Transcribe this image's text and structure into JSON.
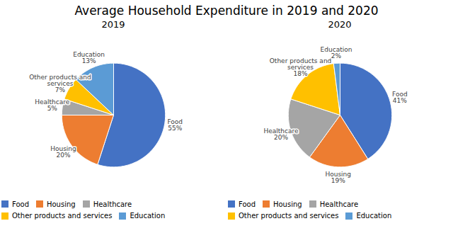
{
  "title": "Average Household Expenditure in 2019 and 2020",
  "chart_data": [
    {
      "type": "pie",
      "title": "2019",
      "categories": [
        "Food",
        "Housing",
        "Healthcare",
        "Other products and services",
        "Education"
      ],
      "values": [
        55,
        20,
        5,
        7,
        13
      ],
      "value_labels": [
        "Food\n55%",
        "Housing\n20%",
        "Healthcare\n5%",
        "Other products and\nservices\n7%",
        "Education\n13%"
      ],
      "colors": [
        "#4472C4",
        "#ED7D31",
        "#A5A5A5",
        "#FFC000",
        "#5B9BD5"
      ],
      "data_labels": true,
      "legend": "bottom"
    },
    {
      "type": "pie",
      "title": "2020",
      "categories": [
        "Food",
        "Housing",
        "Healthcare",
        "Other products and services",
        "Education"
      ],
      "values": [
        41,
        19,
        20,
        18,
        2
      ],
      "value_labels": [
        "Food\n41%",
        "Housing\n19%",
        "Healthcare\n20%",
        "Other products and\nservices\n18%",
        "Education\n2%"
      ],
      "colors": [
        "#4472C4",
        "#ED7D31",
        "#A5A5A5",
        "#FFC000",
        "#5B9BD5"
      ],
      "data_labels": true,
      "legend": "bottom"
    }
  ]
}
